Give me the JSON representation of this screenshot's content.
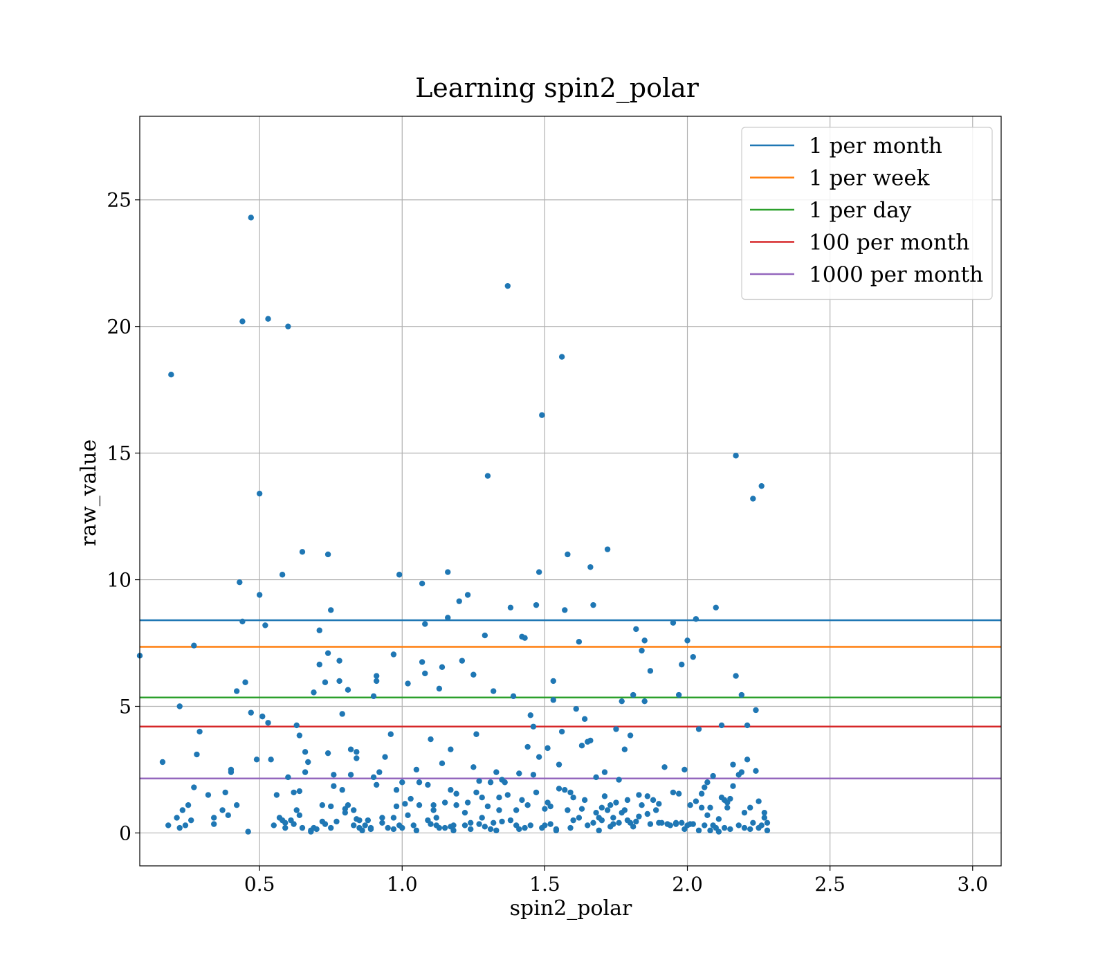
{
  "chart_data": {
    "type": "scatter",
    "title": "Learning spin2_polar",
    "xlabel": "spin2_polar",
    "ylabel": "raw_value",
    "xlim": [
      0.08,
      3.1
    ],
    "ylim": [
      -1.3,
      28.3
    ],
    "xticks": [
      0.5,
      1.0,
      1.5,
      2.0,
      2.5,
      3.0
    ],
    "xtick_labels": [
      "0.5",
      "1.0",
      "1.5",
      "2.0",
      "2.5",
      "3.0"
    ],
    "yticks": [
      0,
      5,
      10,
      15,
      20,
      25
    ],
    "ytick_labels": [
      "0",
      "5",
      "10",
      "15",
      "20",
      "25"
    ],
    "grid": true,
    "legend_position": "top-right",
    "point_color": "#1f77b4",
    "hlines": [
      {
        "name": "1 per month",
        "y": 8.4,
        "color": "#1f77b4"
      },
      {
        "name": "1 per week",
        "y": 7.35,
        "color": "#ff7f0e"
      },
      {
        "name": "1 per day",
        "y": 5.35,
        "color": "#2ca02c"
      },
      {
        "name": "100 per month",
        "y": 4.2,
        "color": "#d62728"
      },
      {
        "name": "1000 per month",
        "y": 2.15,
        "color": "#9467bd"
      }
    ],
    "points": [
      [
        0.08,
        7.0
      ],
      [
        0.16,
        2.8
      ],
      [
        0.18,
        0.3
      ],
      [
        0.19,
        18.1
      ],
      [
        0.21,
        0.6
      ],
      [
        0.22,
        5.0
      ],
      [
        0.22,
        0.2
      ],
      [
        0.23,
        0.9
      ],
      [
        0.24,
        0.3
      ],
      [
        0.25,
        1.1
      ],
      [
        0.26,
        0.5
      ],
      [
        0.27,
        7.4
      ],
      [
        0.27,
        1.8
      ],
      [
        0.28,
        3.1
      ],
      [
        0.29,
        4.0
      ],
      [
        0.32,
        1.5
      ],
      [
        0.34,
        0.6
      ],
      [
        0.34,
        0.35
      ],
      [
        0.37,
        0.9
      ],
      [
        0.38,
        1.6
      ],
      [
        0.39,
        0.7
      ],
      [
        0.4,
        2.4
      ],
      [
        0.4,
        2.5
      ],
      [
        0.42,
        1.1
      ],
      [
        0.42,
        5.6
      ],
      [
        0.43,
        9.9
      ],
      [
        0.44,
        8.35
      ],
      [
        0.44,
        20.2
      ],
      [
        0.45,
        5.95
      ],
      [
        0.46,
        0.05
      ],
      [
        0.47,
        4.75
      ],
      [
        0.47,
        24.3
      ],
      [
        0.49,
        2.9
      ],
      [
        0.5,
        9.4
      ],
      [
        0.5,
        13.4
      ],
      [
        0.51,
        4.6
      ],
      [
        0.52,
        8.2
      ],
      [
        0.53,
        20.3
      ],
      [
        0.53,
        4.35
      ],
      [
        0.54,
        2.9
      ],
      [
        0.55,
        0.3
      ],
      [
        0.56,
        1.5
      ],
      [
        0.57,
        0.6
      ],
      [
        0.58,
        0.5
      ],
      [
        0.58,
        10.2
      ],
      [
        0.59,
        0.2
      ],
      [
        0.59,
        0.4
      ],
      [
        0.6,
        20.0
      ],
      [
        0.6,
        2.2
      ],
      [
        0.61,
        0.5
      ],
      [
        0.62,
        0.35
      ],
      [
        0.62,
        1.6
      ],
      [
        0.63,
        4.25
      ],
      [
        0.63,
        0.9
      ],
      [
        0.64,
        1.65
      ],
      [
        0.64,
        0.7
      ],
      [
        0.64,
        3.85
      ],
      [
        0.65,
        11.1
      ],
      [
        0.65,
        0.2
      ],
      [
        0.66,
        3.2
      ],
      [
        0.66,
        2.4
      ],
      [
        0.67,
        2.8
      ],
      [
        0.68,
        0.1
      ],
      [
        0.68,
        0.05
      ],
      [
        0.69,
        5.55
      ],
      [
        0.69,
        0.2
      ],
      [
        0.7,
        0.15
      ],
      [
        0.71,
        8.0
      ],
      [
        0.71,
        6.65
      ],
      [
        0.72,
        1.1
      ],
      [
        0.72,
        0.45
      ],
      [
        0.73,
        5.95
      ],
      [
        0.73,
        0.35
      ],
      [
        0.74,
        3.15
      ],
      [
        0.74,
        7.1
      ],
      [
        0.74,
        11.0
      ],
      [
        0.75,
        8.8
      ],
      [
        0.75,
        1.05
      ],
      [
        0.75,
        0.2
      ],
      [
        0.76,
        1.85
      ],
      [
        0.76,
        2.3
      ],
      [
        0.77,
        0.45
      ],
      [
        0.78,
        6.8
      ],
      [
        0.78,
        6.0
      ],
      [
        0.79,
        4.7
      ],
      [
        0.79,
        1.7
      ],
      [
        0.8,
        0.95
      ],
      [
        0.8,
        0.8
      ],
      [
        0.81,
        1.1
      ],
      [
        0.81,
        5.65
      ],
      [
        0.82,
        2.3
      ],
      [
        0.82,
        3.3
      ],
      [
        0.83,
        0.9
      ],
      [
        0.83,
        0.3
      ],
      [
        0.84,
        3.2
      ],
      [
        0.84,
        2.95
      ],
      [
        0.84,
        0.55
      ],
      [
        0.85,
        0.5
      ],
      [
        0.85,
        0.2
      ],
      [
        0.86,
        0.1
      ],
      [
        0.87,
        0.3
      ],
      [
        0.88,
        0.5
      ],
      [
        0.89,
        0.2
      ],
      [
        0.89,
        0.15
      ],
      [
        0.9,
        5.4
      ],
      [
        0.9,
        2.2
      ],
      [
        0.91,
        1.9
      ],
      [
        0.91,
        6.0
      ],
      [
        0.91,
        6.2
      ],
      [
        0.92,
        2.4
      ],
      [
        0.93,
        0.6
      ],
      [
        0.93,
        0.4
      ],
      [
        0.94,
        3.0
      ],
      [
        0.95,
        0.2
      ],
      [
        0.96,
        3.9
      ],
      [
        0.97,
        7.05
      ],
      [
        0.97,
        0.6
      ],
      [
        0.97,
        0.15
      ],
      [
        0.98,
        1.7
      ],
      [
        0.98,
        1.05
      ],
      [
        0.99,
        10.2
      ],
      [
        0.99,
        0.3
      ],
      [
        1.0,
        2.0
      ],
      [
        1.0,
        0.2
      ],
      [
        1.01,
        1.15
      ],
      [
        1.02,
        5.9
      ],
      [
        1.02,
        0.7
      ],
      [
        1.03,
        1.35
      ],
      [
        1.04,
        0.3
      ],
      [
        1.05,
        0.1
      ],
      [
        1.05,
        2.5
      ],
      [
        1.06,
        2.0
      ],
      [
        1.06,
        1.1
      ],
      [
        1.07,
        6.75
      ],
      [
        1.07,
        9.85
      ],
      [
        1.08,
        8.25
      ],
      [
        1.08,
        6.3
      ],
      [
        1.09,
        1.9
      ],
      [
        1.09,
        0.5
      ],
      [
        1.1,
        0.35
      ],
      [
        1.1,
        3.7
      ],
      [
        1.11,
        1.1
      ],
      [
        1.11,
        0.9
      ],
      [
        1.12,
        0.3
      ],
      [
        1.12,
        0.6
      ],
      [
        1.13,
        0.2
      ],
      [
        1.13,
        5.7
      ],
      [
        1.14,
        6.55
      ],
      [
        1.14,
        2.75
      ],
      [
        1.15,
        1.2
      ],
      [
        1.15,
        0.2
      ],
      [
        1.16,
        10.3
      ],
      [
        1.16,
        8.5
      ],
      [
        1.17,
        1.7
      ],
      [
        1.17,
        3.3
      ],
      [
        1.17,
        0.25
      ],
      [
        1.18,
        0.1
      ],
      [
        1.18,
        0.3
      ],
      [
        1.19,
        1.55
      ],
      [
        1.19,
        1.1
      ],
      [
        1.2,
        9.15
      ],
      [
        1.21,
        6.8
      ],
      [
        1.22,
        0.3
      ],
      [
        1.22,
        0.8
      ],
      [
        1.23,
        9.4
      ],
      [
        1.23,
        1.2
      ],
      [
        1.24,
        0.15
      ],
      [
        1.24,
        0.4
      ],
      [
        1.25,
        2.6
      ],
      [
        1.25,
        6.25
      ],
      [
        1.26,
        3.9
      ],
      [
        1.26,
        1.6
      ],
      [
        1.27,
        0.35
      ],
      [
        1.27,
        2.05
      ],
      [
        1.28,
        1.4
      ],
      [
        1.28,
        0.6
      ],
      [
        1.29,
        0.25
      ],
      [
        1.29,
        7.8
      ],
      [
        1.3,
        14.1
      ],
      [
        1.3,
        1.05
      ],
      [
        1.31,
        2.0
      ],
      [
        1.31,
        0.15
      ],
      [
        1.32,
        5.6
      ],
      [
        1.32,
        0.4
      ],
      [
        1.33,
        0.1
      ],
      [
        1.33,
        2.4
      ],
      [
        1.34,
        1.4
      ],
      [
        1.34,
        0.9
      ],
      [
        1.35,
        0.45
      ],
      [
        1.35,
        2.1
      ],
      [
        1.36,
        2.0
      ],
      [
        1.37,
        21.6
      ],
      [
        1.37,
        1.5
      ],
      [
        1.38,
        8.9
      ],
      [
        1.38,
        0.5
      ],
      [
        1.39,
        5.4
      ],
      [
        1.4,
        0.9
      ],
      [
        1.4,
        0.3
      ],
      [
        1.41,
        2.35
      ],
      [
        1.41,
        0.15
      ],
      [
        1.42,
        1.3
      ],
      [
        1.42,
        7.75
      ],
      [
        1.43,
        0.2
      ],
      [
        1.43,
        7.7
      ],
      [
        1.44,
        1.1
      ],
      [
        1.44,
        3.4
      ],
      [
        1.45,
        4.65
      ],
      [
        1.45,
        0.3
      ],
      [
        1.46,
        4.2
      ],
      [
        1.46,
        2.3
      ],
      [
        1.47,
        9.0
      ],
      [
        1.47,
        1.6
      ],
      [
        1.48,
        3.0
      ],
      [
        1.48,
        10.3
      ],
      [
        1.49,
        16.5
      ],
      [
        1.49,
        0.2
      ],
      [
        1.5,
        0.3
      ],
      [
        1.5,
        0.95
      ],
      [
        1.51,
        3.35
      ],
      [
        1.51,
        1.2
      ],
      [
        1.52,
        1.05
      ],
      [
        1.52,
        0.35
      ],
      [
        1.53,
        5.25
      ],
      [
        1.53,
        6.0
      ],
      [
        1.54,
        0.1
      ],
      [
        1.54,
        0.15
      ],
      [
        1.55,
        2.7
      ],
      [
        1.55,
        1.75
      ],
      [
        1.56,
        18.8
      ],
      [
        1.56,
        4.0
      ],
      [
        1.57,
        1.7
      ],
      [
        1.57,
        8.8
      ],
      [
        1.58,
        11.0
      ],
      [
        1.58,
        0.9
      ],
      [
        1.59,
        1.6
      ],
      [
        1.59,
        0.2
      ],
      [
        1.6,
        0.5
      ],
      [
        1.6,
        1.4
      ],
      [
        1.61,
        4.9
      ],
      [
        1.62,
        7.55
      ],
      [
        1.62,
        0.6
      ],
      [
        1.63,
        3.45
      ],
      [
        1.63,
        0.95
      ],
      [
        1.64,
        1.3
      ],
      [
        1.64,
        4.5
      ],
      [
        1.65,
        3.6
      ],
      [
        1.65,
        0.3
      ],
      [
        1.66,
        3.65
      ],
      [
        1.66,
        10.5
      ],
      [
        1.67,
        9.0
      ],
      [
        1.67,
        0.4
      ],
      [
        1.68,
        2.2
      ],
      [
        1.68,
        0.8
      ],
      [
        1.69,
        0.1
      ],
      [
        1.69,
        0.6
      ],
      [
        1.7,
        1.0
      ],
      [
        1.7,
        0.5
      ],
      [
        1.71,
        2.4
      ],
      [
        1.71,
        1.45
      ],
      [
        1.72,
        11.2
      ],
      [
        1.72,
        0.9
      ],
      [
        1.73,
        0.25
      ],
      [
        1.73,
        1.1
      ],
      [
        1.74,
        0.6
      ],
      [
        1.74,
        0.35
      ],
      [
        1.75,
        4.1
      ],
      [
        1.75,
        1.2
      ],
      [
        1.76,
        2.1
      ],
      [
        1.76,
        0.4
      ],
      [
        1.77,
        5.2
      ],
      [
        1.77,
        0.8
      ],
      [
        1.78,
        3.3
      ],
      [
        1.78,
        0.9
      ],
      [
        1.79,
        1.3
      ],
      [
        1.79,
        0.5
      ],
      [
        1.8,
        0.4
      ],
      [
        1.8,
        3.85
      ],
      [
        1.81,
        5.45
      ],
      [
        1.81,
        0.25
      ],
      [
        1.82,
        8.05
      ],
      [
        1.82,
        0.45
      ],
      [
        1.83,
        1.5
      ],
      [
        1.83,
        0.65
      ],
      [
        1.84,
        1.1
      ],
      [
        1.84,
        7.2
      ],
      [
        1.85,
        7.6
      ],
      [
        1.85,
        5.2
      ],
      [
        1.86,
        0.75
      ],
      [
        1.86,
        1.45
      ],
      [
        1.87,
        6.4
      ],
      [
        1.87,
        0.35
      ],
      [
        1.88,
        1.3
      ],
      [
        1.89,
        0.9
      ],
      [
        1.9,
        1.15
      ],
      [
        1.9,
        0.4
      ],
      [
        1.91,
        0.4
      ],
      [
        1.92,
        2.6
      ],
      [
        1.93,
        0.35
      ],
      [
        1.94,
        0.3
      ],
      [
        1.95,
        1.6
      ],
      [
        1.95,
        8.3
      ],
      [
        1.96,
        0.4
      ],
      [
        1.96,
        0.35
      ],
      [
        1.97,
        1.55
      ],
      [
        1.97,
        5.45
      ],
      [
        1.98,
        6.65
      ],
      [
        1.98,
        0.4
      ],
      [
        1.99,
        2.5
      ],
      [
        1.99,
        0.15
      ],
      [
        2.0,
        0.3
      ],
      [
        2.0,
        7.6
      ],
      [
        2.01,
        1.1
      ],
      [
        2.01,
        0.35
      ],
      [
        2.02,
        6.95
      ],
      [
        2.02,
        0.35
      ],
      [
        2.03,
        8.45
      ],
      [
        2.03,
        1.25
      ],
      [
        2.04,
        4.1
      ],
      [
        2.04,
        0.1
      ],
      [
        2.05,
        1.55
      ],
      [
        2.05,
        1.0
      ],
      [
        2.06,
        0.3
      ],
      [
        2.06,
        1.8
      ],
      [
        2.07,
        0.7
      ],
      [
        2.07,
        2.0
      ],
      [
        2.08,
        1.0
      ],
      [
        2.08,
        0.1
      ],
      [
        2.09,
        0.3
      ],
      [
        2.09,
        2.25
      ],
      [
        2.1,
        0.2
      ],
      [
        2.1,
        8.9
      ],
      [
        2.11,
        0.05
      ],
      [
        2.11,
        0.55
      ],
      [
        2.12,
        1.4
      ],
      [
        2.12,
        4.25
      ],
      [
        2.13,
        1.3
      ],
      [
        2.13,
        0.2
      ],
      [
        2.14,
        1.0
      ],
      [
        2.14,
        1.2
      ],
      [
        2.15,
        0.15
      ],
      [
        2.15,
        1.35
      ],
      [
        2.16,
        1.85
      ],
      [
        2.16,
        2.7
      ],
      [
        2.17,
        14.9
      ],
      [
        2.17,
        6.2
      ],
      [
        2.18,
        0.3
      ],
      [
        2.18,
        2.3
      ],
      [
        2.19,
        2.4
      ],
      [
        2.19,
        5.45
      ],
      [
        2.2,
        0.8
      ],
      [
        2.2,
        0.2
      ],
      [
        2.21,
        2.9
      ],
      [
        2.21,
        4.25
      ],
      [
        2.22,
        1.0
      ],
      [
        2.22,
        0.15
      ],
      [
        2.23,
        13.2
      ],
      [
        2.23,
        0.4
      ],
      [
        2.24,
        4.85
      ],
      [
        2.24,
        2.45
      ],
      [
        2.25,
        0.2
      ],
      [
        2.25,
        1.25
      ],
      [
        2.26,
        13.7
      ],
      [
        2.26,
        0.3
      ],
      [
        2.27,
        0.8
      ],
      [
        2.27,
        0.6
      ],
      [
        2.28,
        0.4
      ],
      [
        2.28,
        0.1
      ]
    ]
  }
}
